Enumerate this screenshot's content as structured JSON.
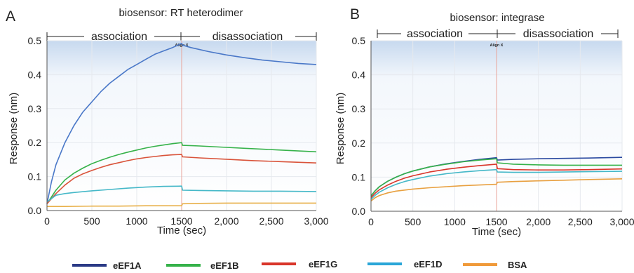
{
  "legend": [
    {
      "name": "eEF1A",
      "color": "#2b3a86"
    },
    {
      "name": "eEF1B",
      "color": "#36b24a"
    },
    {
      "name": "eEF1G",
      "color": "#d9352a"
    },
    {
      "name": "eEF1D",
      "color": "#2aa6d8"
    },
    {
      "name": "BSA",
      "color": "#f09a3a"
    }
  ],
  "chart_data": [
    {
      "type": "line",
      "panel": "A",
      "title": "biosensor: RT heterodimer",
      "phases": [
        "association",
        "disassociation"
      ],
      "marker_label": "Align X",
      "marker_x": 1500,
      "xlabel": "Time (sec)",
      "ylabel": "Response (nm)",
      "xlim": [
        0,
        3000
      ],
      "ylim": [
        0,
        0.5
      ],
      "xticks": [
        "0",
        "500",
        "1000",
        "1500",
        "2,000",
        "2,500",
        "3,000"
      ],
      "xtick_values": [
        0,
        500,
        1000,
        1500,
        2000,
        2500,
        3000
      ],
      "yticks": [
        "0.0",
        "0.1",
        "0.2",
        "0.3",
        "0.4",
        "0.5"
      ],
      "ytick_values": [
        0,
        0.1,
        0.2,
        0.3,
        0.4,
        0.5
      ],
      "series": [
        {
          "color": "#4a78c8",
          "x": [
            0,
            50,
            100,
            200,
            300,
            400,
            500,
            600,
            700,
            800,
            900,
            1000,
            1100,
            1200,
            1300,
            1400,
            1500,
            1510,
            1600,
            1800,
            2000,
            2200,
            2400,
            2600,
            2800,
            3000
          ],
          "y": [
            0.02,
            0.085,
            0.135,
            0.2,
            0.25,
            0.29,
            0.32,
            0.35,
            0.375,
            0.395,
            0.415,
            0.43,
            0.445,
            0.46,
            0.47,
            0.48,
            0.492,
            0.487,
            0.48,
            0.468,
            0.458,
            0.45,
            0.443,
            0.438,
            0.433,
            0.43
          ]
        },
        {
          "color": "#36b24a",
          "x": [
            0,
            100,
            200,
            300,
            400,
            500,
            600,
            700,
            800,
            900,
            1000,
            1100,
            1200,
            1300,
            1400,
            1500,
            1510,
            1700,
            2000,
            2300,
            2600,
            3000
          ],
          "y": [
            0.02,
            0.06,
            0.09,
            0.11,
            0.125,
            0.138,
            0.148,
            0.157,
            0.165,
            0.172,
            0.178,
            0.184,
            0.189,
            0.193,
            0.197,
            0.2,
            0.192,
            0.19,
            0.186,
            0.182,
            0.178,
            0.173
          ]
        },
        {
          "color": "#d9533a",
          "x": [
            0,
            100,
            200,
            300,
            400,
            500,
            600,
            700,
            800,
            900,
            1000,
            1100,
            1200,
            1300,
            1400,
            1500,
            1510,
            1700,
            2000,
            2300,
            2600,
            3000
          ],
          "y": [
            0.02,
            0.05,
            0.075,
            0.095,
            0.108,
            0.118,
            0.127,
            0.135,
            0.141,
            0.147,
            0.152,
            0.156,
            0.159,
            0.162,
            0.164,
            0.165,
            0.158,
            0.155,
            0.151,
            0.147,
            0.144,
            0.14
          ]
        },
        {
          "color": "#45b8c8",
          "x": [
            0,
            100,
            200,
            300,
            500,
            700,
            900,
            1100,
            1300,
            1500,
            1510,
            1700,
            2000,
            2300,
            2600,
            3000
          ],
          "y": [
            0.025,
            0.045,
            0.05,
            0.053,
            0.058,
            0.062,
            0.066,
            0.069,
            0.071,
            0.072,
            0.06,
            0.059,
            0.058,
            0.057,
            0.057,
            0.056
          ]
        },
        {
          "color": "#e8b04a",
          "x": [
            0,
            200,
            500,
            800,
            1100,
            1400,
            1500,
            1510,
            1700,
            2000,
            2300,
            2600,
            3000
          ],
          "y": [
            0.012,
            0.012,
            0.013,
            0.013,
            0.014,
            0.014,
            0.014,
            0.02,
            0.021,
            0.022,
            0.022,
            0.022,
            0.022
          ]
        }
      ]
    },
    {
      "type": "line",
      "panel": "B",
      "title": "biosensor: integrase",
      "phases": [
        "association",
        "disassociation"
      ],
      "marker_label": "Align X",
      "marker_x": 1500,
      "xlabel": "Time (sec)",
      "ylabel": "Response (nm)",
      "xlim": [
        0,
        3000
      ],
      "ylim": [
        0,
        0.5
      ],
      "xticks": [
        "0",
        "500",
        "1000",
        "1500",
        "2,000",
        "2,500",
        "3,000"
      ],
      "xtick_values": [
        0,
        500,
        1000,
        1500,
        2000,
        2500,
        3000
      ],
      "yticks": [
        "0.0",
        "0.1",
        "0.2",
        "0.3",
        "0.4",
        "0.5"
      ],
      "ytick_values": [
        0,
        0.1,
        0.2,
        0.3,
        0.4,
        0.5
      ],
      "series": [
        {
          "color": "#2b4aa0",
          "x": [
            0,
            50,
            100,
            200,
            300,
            400,
            500,
            700,
            900,
            1100,
            1300,
            1500,
            1510,
            1700,
            2000,
            2300,
            2600,
            3000
          ],
          "y": [
            0.045,
            0.06,
            0.072,
            0.088,
            0.1,
            0.11,
            0.118,
            0.13,
            0.139,
            0.146,
            0.152,
            0.157,
            0.15,
            0.152,
            0.154,
            0.155,
            0.156,
            0.158
          ]
        },
        {
          "color": "#36b24a",
          "x": [
            0,
            50,
            100,
            200,
            300,
            400,
            500,
            700,
            900,
            1100,
            1300,
            1500,
            1510,
            1700,
            2000,
            2300,
            2600,
            3000
          ],
          "y": [
            0.045,
            0.06,
            0.072,
            0.088,
            0.1,
            0.11,
            0.118,
            0.13,
            0.138,
            0.145,
            0.15,
            0.154,
            0.142,
            0.138,
            0.136,
            0.135,
            0.135,
            0.135
          ]
        },
        {
          "color": "#d9352a",
          "x": [
            0,
            50,
            100,
            200,
            300,
            400,
            500,
            700,
            900,
            1100,
            1300,
            1500,
            1510,
            1700,
            2000,
            2300,
            2600,
            3000
          ],
          "y": [
            0.04,
            0.053,
            0.063,
            0.077,
            0.088,
            0.097,
            0.104,
            0.115,
            0.123,
            0.129,
            0.134,
            0.138,
            0.125,
            0.122,
            0.121,
            0.121,
            0.122,
            0.124
          ]
        },
        {
          "color": "#45b8c8",
          "x": [
            0,
            50,
            100,
            200,
            300,
            400,
            500,
            700,
            900,
            1100,
            1300,
            1500,
            1510,
            1700,
            2000,
            2300,
            2600,
            3000
          ],
          "y": [
            0.035,
            0.047,
            0.056,
            0.069,
            0.079,
            0.087,
            0.093,
            0.103,
            0.11,
            0.115,
            0.119,
            0.122,
            0.115,
            0.114,
            0.114,
            0.115,
            0.116,
            0.117
          ]
        },
        {
          "color": "#e8a040",
          "x": [
            0,
            50,
            100,
            200,
            300,
            500,
            700,
            900,
            1100,
            1300,
            1500,
            1510,
            1700,
            2000,
            2300,
            2600,
            3000
          ],
          "y": [
            0.03,
            0.04,
            0.046,
            0.054,
            0.059,
            0.065,
            0.069,
            0.072,
            0.075,
            0.077,
            0.079,
            0.085,
            0.087,
            0.089,
            0.091,
            0.093,
            0.095
          ]
        }
      ]
    }
  ]
}
